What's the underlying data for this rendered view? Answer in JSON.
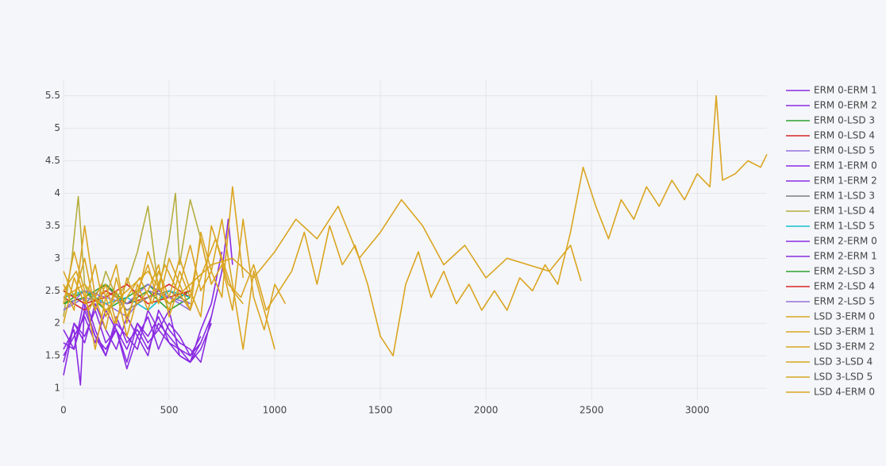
{
  "chart_data": {
    "type": "line",
    "xlim": [
      0,
      3330
    ],
    "ylim": [
      0.83,
      5.74
    ],
    "xticks": [
      0,
      500,
      1000,
      1500,
      2000,
      2500,
      3000
    ],
    "yticks": [
      1,
      1.5,
      2,
      2.5,
      3,
      3.5,
      4,
      4.5,
      5,
      5.5
    ],
    "grid": true,
    "legend": "right",
    "series": [
      {
        "name": "ERM 0-ERM 1",
        "color": "#8a2be2",
        "x": [
          0,
          50,
          100,
          150,
          200,
          250,
          300,
          350,
          400,
          450,
          500,
          550,
          600,
          650
        ],
        "values": [
          1.2,
          2.0,
          1.8,
          2.2,
          1.7,
          1.9,
          1.6,
          2.0,
          1.8,
          2.1,
          1.7,
          1.6,
          1.5,
          1.8
        ]
      },
      {
        "name": "ERM 0-ERM 2",
        "color": "#8a2be2",
        "x": [
          0,
          50,
          80,
          100,
          150,
          200,
          250,
          300,
          350,
          400,
          450,
          500,
          550,
          600,
          650,
          700
        ],
        "values": [
          1.6,
          1.9,
          1.05,
          2.3,
          1.8,
          1.6,
          1.9,
          1.4,
          2.0,
          1.7,
          1.9,
          2.2,
          1.5,
          1.4,
          1.6,
          2.0
        ]
      },
      {
        "name": "ERM 0-LSD 3",
        "color": "#2ca02c",
        "x": [
          0,
          100,
          200,
          300,
          400,
          500,
          600
        ],
        "values": [
          2.3,
          2.5,
          2.2,
          2.4,
          2.6,
          2.3,
          2.5
        ]
      },
      {
        "name": "ERM 0-LSD 4",
        "color": "#d62728",
        "x": [
          0,
          100,
          200,
          300,
          400,
          500,
          600
        ],
        "values": [
          2.4,
          2.2,
          2.5,
          2.3,
          2.4,
          2.6,
          2.4
        ]
      },
      {
        "name": "ERM 0-LSD 5",
        "color": "#9370db",
        "x": [
          0,
          100,
          200,
          300,
          400,
          500,
          600
        ],
        "values": [
          2.2,
          2.4,
          2.3,
          2.1,
          2.5,
          2.4,
          2.2
        ]
      },
      {
        "name": "ERM 1-ERM 0",
        "color": "#8a2be2",
        "x": [
          0,
          50,
          100,
          150,
          200,
          250,
          300,
          350,
          400,
          450,
          500,
          550,
          600,
          650,
          700,
          750,
          780,
          800
        ],
        "values": [
          1.5,
          1.8,
          2.1,
          1.7,
          2.2,
          1.9,
          1.3,
          1.8,
          2.1,
          1.6,
          2.0,
          1.8,
          1.5,
          1.7,
          2.1,
          2.8,
          3.6,
          2.9
        ]
      },
      {
        "name": "ERM 1-ERM 2",
        "color": "#8a2be2",
        "x": [
          0,
          50,
          100,
          150,
          200,
          250,
          300,
          350,
          400,
          450,
          500,
          550,
          600,
          650,
          700,
          750
        ],
        "values": [
          1.7,
          1.6,
          2.4,
          1.9,
          1.5,
          2.0,
          1.8,
          1.6,
          2.2,
          1.9,
          1.7,
          1.5,
          1.4,
          1.9,
          2.3,
          3.1
        ]
      },
      {
        "name": "ERM 1-LSD 3",
        "color": "#7f7f7f",
        "x": [
          0,
          100,
          200,
          300,
          400,
          500,
          600
        ],
        "values": [
          2.5,
          2.3,
          2.6,
          2.2,
          2.4,
          2.5,
          2.3
        ]
      },
      {
        "name": "ERM 1-LSD 4",
        "color": "#b5ae3f",
        "x": [
          0,
          40,
          70,
          100,
          150,
          200,
          250,
          300,
          350,
          400,
          450,
          500,
          530,
          550,
          600,
          650,
          700
        ],
        "values": [
          2.1,
          3.0,
          3.95,
          2.6,
          2.2,
          2.8,
          2.4,
          2.6,
          3.1,
          3.8,
          2.5,
          3.3,
          4.0,
          2.9,
          3.9,
          3.3,
          2.6
        ]
      },
      {
        "name": "ERM 1-LSD 5",
        "color": "#17becf",
        "x": [
          0,
          100,
          200,
          300,
          400,
          500,
          600
        ],
        "values": [
          2.4,
          2.5,
          2.3,
          2.4,
          2.2,
          2.5,
          2.4
        ]
      },
      {
        "name": "ERM 2-ERM 0",
        "color": "#8a2be2",
        "x": [
          0,
          50,
          100,
          150,
          200,
          250,
          300,
          350,
          400,
          450,
          500,
          550,
          600,
          650
        ],
        "values": [
          1.9,
          1.6,
          2.2,
          1.8,
          1.5,
          2.1,
          1.7,
          1.9,
          1.6,
          2.0,
          1.8,
          1.6,
          1.4,
          1.7
        ]
      },
      {
        "name": "ERM 2-ERM 1",
        "color": "#8a2be2",
        "x": [
          0,
          50,
          100,
          150,
          200,
          250,
          300,
          350,
          400,
          450,
          500,
          550,
          600,
          650,
          700
        ],
        "values": [
          1.4,
          2.0,
          1.7,
          2.3,
          1.9,
          1.6,
          2.1,
          1.8,
          1.5,
          2.2,
          1.9,
          1.7,
          1.6,
          1.4,
          2.1
        ]
      },
      {
        "name": "ERM 2-LSD 3",
        "color": "#2ca02c",
        "x": [
          0,
          100,
          200,
          300,
          400,
          500,
          600
        ],
        "values": [
          2.3,
          2.4,
          2.6,
          2.3,
          2.5,
          2.2,
          2.4
        ]
      },
      {
        "name": "ERM 2-LSD 4",
        "color": "#d62728",
        "x": [
          0,
          100,
          200,
          300,
          400,
          500,
          600
        ],
        "values": [
          2.5,
          2.3,
          2.4,
          2.6,
          2.3,
          2.4,
          2.5
        ]
      },
      {
        "name": "ERM 2-LSD 5",
        "color": "#9370db",
        "x": [
          0,
          100,
          200,
          300,
          400,
          500,
          600
        ],
        "values": [
          2.2,
          2.5,
          2.4,
          2.3,
          2.6,
          2.4,
          2.3
        ]
      },
      {
        "name": "LSD 3-ERM 0",
        "color": "#daa520",
        "x": [
          0,
          50,
          100,
          150,
          200,
          250,
          300,
          350,
          400,
          450,
          500,
          550,
          600,
          650,
          700,
          750,
          800,
          850
        ],
        "values": [
          2.6,
          2.2,
          3.5,
          2.4,
          1.9,
          2.7,
          2.1,
          2.5,
          2.9,
          2.3,
          3.0,
          2.6,
          2.2,
          3.4,
          2.8,
          2.4,
          4.1,
          2.7
        ]
      },
      {
        "name": "LSD 3-ERM 1",
        "color": "#daa520",
        "x": [
          0,
          50,
          100,
          150,
          200,
          250,
          300,
          350,
          400,
          450,
          500,
          550,
          600,
          650,
          700,
          750,
          800,
          850
        ],
        "values": [
          2.3,
          3.1,
          2.5,
          1.6,
          2.4,
          2.9,
          2.0,
          2.6,
          2.2,
          2.8,
          2.4,
          3.0,
          2.5,
          2.1,
          3.5,
          3.0,
          2.5,
          2.3
        ]
      },
      {
        "name": "LSD 3-ERM 2",
        "color": "#daa520",
        "x": [
          0,
          50,
          100,
          150,
          200,
          250,
          300,
          350,
          400,
          450,
          500,
          550,
          600,
          650,
          700,
          750,
          800,
          850,
          900,
          950,
          1000,
          1050
        ],
        "values": [
          2.0,
          2.7,
          2.3,
          2.9,
          2.1,
          2.5,
          1.8,
          2.4,
          3.1,
          2.6,
          2.2,
          2.8,
          2.4,
          3.3,
          2.6,
          2.9,
          2.2,
          3.6,
          2.4,
          1.9,
          2.6,
          2.3
        ]
      },
      {
        "name": "LSD 3-LSD 4",
        "color": "#daa520",
        "x": [
          0,
          50,
          100,
          150,
          200,
          250,
          300,
          350,
          400,
          450,
          500,
          550,
          600,
          650,
          700,
          750,
          800,
          850,
          900,
          950,
          1000
        ],
        "values": [
          2.8,
          2.4,
          3.0,
          2.2,
          2.6,
          2.0,
          2.7,
          2.3,
          2.5,
          2.9,
          2.1,
          2.6,
          3.2,
          2.5,
          2.8,
          3.6,
          2.6,
          1.6,
          2.8,
          2.2,
          1.6
        ]
      },
      {
        "name": "LSD 3-LSD 5",
        "color": "#daa520",
        "x": [
          0,
          100,
          200,
          300,
          400,
          500,
          600,
          700,
          800,
          900,
          1000,
          1100,
          1200,
          1300,
          1400,
          1500,
          1600,
          1700,
          1800,
          1900,
          2000,
          2100,
          2200,
          2300,
          2400,
          2450
        ],
        "values": [
          2.4,
          2.6,
          2.2,
          2.5,
          2.8,
          2.3,
          2.6,
          2.9,
          3.0,
          2.7,
          3.1,
          3.6,
          3.3,
          3.8,
          3.0,
          3.4,
          3.9,
          3.5,
          2.9,
          3.2,
          2.7,
          3.0,
          2.9,
          2.8,
          3.2,
          2.65
        ]
      },
      {
        "name": "LSD 4-ERM 0",
        "color": "#daa520",
        "x": [
          0,
          60,
          120,
          180,
          240,
          300,
          360,
          420,
          480,
          540,
          600,
          660,
          720,
          780,
          840,
          900,
          960,
          1020,
          1080,
          1140,
          1200,
          1260,
          1320,
          1380,
          1440,
          1500,
          1560,
          1620,
          1680,
          1740,
          1800,
          1860,
          1920,
          1980,
          2040,
          2100,
          2160,
          2220,
          2280,
          2340,
          2400,
          2460,
          2520,
          2580,
          2640,
          2700,
          2760,
          2820,
          2880,
          2940,
          3000,
          3060,
          3090,
          3120,
          3180,
          3240,
          3300,
          3330
        ],
        "values": [
          2.5,
          2.8,
          2.2,
          2.6,
          2.0,
          2.4,
          2.7,
          2.3,
          2.9,
          2.5,
          2.2,
          2.8,
          3.3,
          2.6,
          2.4,
          2.9,
          2.2,
          2.5,
          2.8,
          3.4,
          2.6,
          3.5,
          2.9,
          3.2,
          2.6,
          1.8,
          1.5,
          2.6,
          3.1,
          2.4,
          2.8,
          2.3,
          2.6,
          2.2,
          2.5,
          2.2,
          2.7,
          2.5,
          2.9,
          2.6,
          3.4,
          4.4,
          3.8,
          3.3,
          3.9,
          3.6,
          4.1,
          3.8,
          4.2,
          3.9,
          4.3,
          4.1,
          5.5,
          4.2,
          4.3,
          4.5,
          4.4,
          4.6
        ]
      }
    ]
  }
}
